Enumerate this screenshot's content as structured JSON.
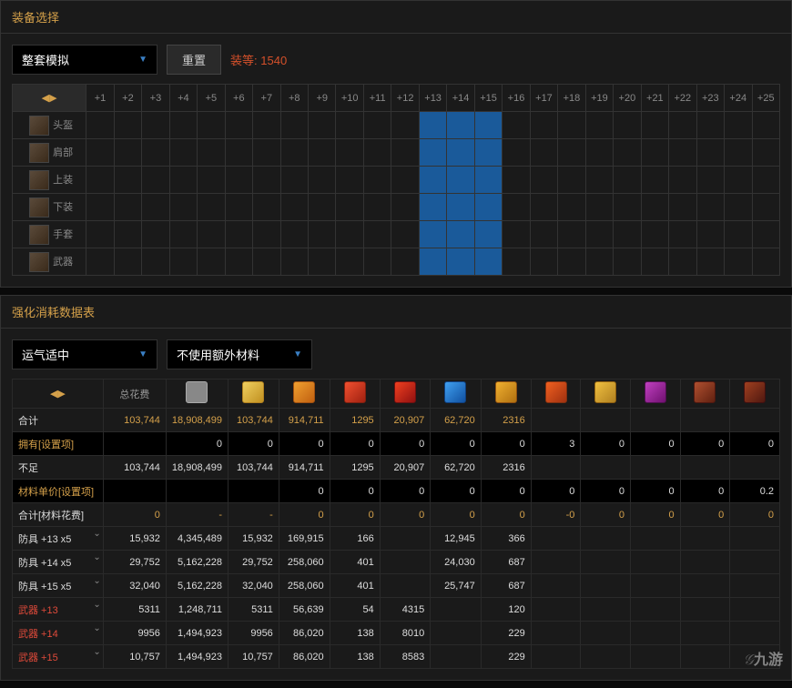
{
  "equip_panel": {
    "title": "装备选择",
    "dropdown": "整套模拟",
    "reset": "重置",
    "level_label": "装等: ",
    "level_value": "1540",
    "headers": [
      "+1",
      "+2",
      "+3",
      "+4",
      "+5",
      "+6",
      "+7",
      "+8",
      "+9",
      "+10",
      "+11",
      "+12",
      "+13",
      "+14",
      "+15",
      "+16",
      "+17",
      "+18",
      "+19",
      "+20",
      "+21",
      "+22",
      "+23",
      "+24",
      "+25"
    ],
    "slots": [
      "头盔",
      "肩部",
      "上装",
      "下装",
      "手套",
      "武器"
    ],
    "highlight_cols": [
      13,
      14,
      15
    ]
  },
  "consume_panel": {
    "title": "强化消耗数据表",
    "luck_dropdown": "运气适中",
    "material_dropdown": "不使用额外材料",
    "cost_header": "总花费",
    "icons": [
      {
        "bg": "#888",
        "brd": "#aaa"
      },
      {
        "bg": "linear-gradient(135deg,#f0d060,#c09020)",
        "brd": "#b08020"
      },
      {
        "bg": "linear-gradient(135deg,#f0a030,#c06010)",
        "brd": "#a05010"
      },
      {
        "bg": "linear-gradient(135deg,#f05030,#a02010)",
        "brd": "#802010"
      },
      {
        "bg": "linear-gradient(135deg,#f04020,#901010)",
        "brd": "#701010"
      },
      {
        "bg": "linear-gradient(135deg,#40a0f0,#1050a0)",
        "brd": "#104080"
      },
      {
        "bg": "linear-gradient(135deg,#f0b030,#b07010)",
        "brd": "#905010"
      },
      {
        "bg": "linear-gradient(135deg,#f06020,#a03010)",
        "brd": "#803010"
      },
      {
        "bg": "linear-gradient(135deg,#f0c040,#b08020)",
        "brd": "#906010"
      },
      {
        "bg": "linear-gradient(135deg,#c040c0,#701070)",
        "brd": "#501050"
      },
      {
        "bg": "linear-gradient(135deg,#b05030,#602010)",
        "brd": "#501810"
      },
      {
        "bg": "linear-gradient(135deg,#a04020,#501810)",
        "brd": "#401010"
      }
    ],
    "rows": [
      {
        "label": "合计",
        "cls": "white",
        "vals": [
          "103,744",
          "18,908,499",
          "103,744",
          "914,711",
          "1295",
          "20,907",
          "62,720",
          "2316",
          "",
          "",
          "",
          "",
          ""
        ],
        "vcls": "gold"
      },
      {
        "label": "拥有[设置项]",
        "cls": "gold",
        "vals": [
          "",
          "0",
          "0",
          "0",
          "0",
          "0",
          "0",
          "0",
          "3",
          "0",
          "0",
          "0",
          "0"
        ],
        "vcls": "white",
        "input": true
      },
      {
        "label": "不足",
        "cls": "white",
        "vals": [
          "103,744",
          "18,908,499",
          "103,744",
          "914,711",
          "1295",
          "20,907",
          "62,720",
          "2316",
          "",
          "",
          "",
          "",
          ""
        ],
        "vcls": "white"
      },
      {
        "label": "材料单价[设置项]",
        "cls": "gold",
        "vals": [
          "",
          "",
          "",
          "0",
          "0",
          "0",
          "0",
          "0",
          "0",
          "0",
          "0",
          "0",
          "0.2"
        ],
        "vcls": "white",
        "input": true
      },
      {
        "label": "合计[材料花费]",
        "cls": "white",
        "vals": [
          "0",
          "-",
          "-",
          "0",
          "0",
          "0",
          "0",
          "0",
          "-0",
          "0",
          "0",
          "0",
          "0"
        ],
        "vcls": "gold"
      },
      {
        "label": "防具 +13 x5",
        "cls": "white",
        "vals": [
          "15,932",
          "4,345,489",
          "15,932",
          "169,915",
          "166",
          "",
          "12,945",
          "366",
          "",
          "",
          "",
          "",
          ""
        ],
        "vcls": "white",
        "exp": true
      },
      {
        "label": "防具 +14 x5",
        "cls": "white",
        "vals": [
          "29,752",
          "5,162,228",
          "29,752",
          "258,060",
          "401",
          "",
          "24,030",
          "687",
          "",
          "",
          "",
          "",
          ""
        ],
        "vcls": "white",
        "exp": true
      },
      {
        "label": "防具 +15 x5",
        "cls": "white",
        "vals": [
          "32,040",
          "5,162,228",
          "32,040",
          "258,060",
          "401",
          "",
          "25,747",
          "687",
          "",
          "",
          "",
          "",
          ""
        ],
        "vcls": "white",
        "exp": true
      },
      {
        "label": "武器 +13",
        "cls": "red",
        "vals": [
          "5311",
          "1,248,711",
          "5311",
          "56,639",
          "54",
          "4315",
          "",
          "120",
          "",
          "",
          "",
          "",
          ""
        ],
        "vcls": "white",
        "exp": true
      },
      {
        "label": "武器 +14",
        "cls": "red",
        "vals": [
          "9956",
          "1,494,923",
          "9956",
          "86,020",
          "138",
          "8010",
          "",
          "229",
          "",
          "",
          "",
          "",
          ""
        ],
        "vcls": "white",
        "exp": true
      },
      {
        "label": "武器 +15",
        "cls": "red",
        "vals": [
          "10,757",
          "1,494,923",
          "10,757",
          "86,020",
          "138",
          "8583",
          "",
          "229",
          "",
          "",
          "",
          "",
          ""
        ],
        "vcls": "white",
        "exp": true
      }
    ]
  },
  "watermark": "九游"
}
